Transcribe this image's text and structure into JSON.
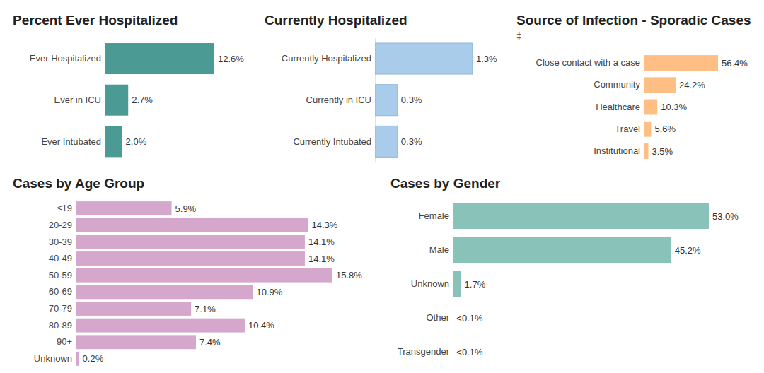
{
  "chart_data": [
    {
      "type": "bar",
      "orientation": "horizontal",
      "title": "Percent Ever Hospitalized",
      "categories": [
        "Ever Hospitalized",
        "Ever in ICU",
        "Ever Intubated"
      ],
      "values": [
        12.6,
        2.7,
        2.0
      ],
      "value_labels": [
        "12.6%",
        "2.7%",
        "2.0%"
      ],
      "color": "#4b9a93",
      "data_labels": true,
      "tick_labels": "y"
    },
    {
      "type": "bar",
      "orientation": "horizontal",
      "title": "Currently Hospitalized",
      "categories": [
        "Currently Hospitalized",
        "Currently in ICU",
        "Currently Intubated"
      ],
      "values": [
        1.3,
        0.3,
        0.3
      ],
      "value_labels": [
        "1.3%",
        "0.3%",
        "0.3%"
      ],
      "color": "#a8cce9",
      "data_labels": true,
      "tick_labels": "y"
    },
    {
      "type": "bar",
      "orientation": "horizontal",
      "title": "Source of Infection - Sporadic Cases",
      "subtitle": "‡",
      "categories": [
        "Close contact with a case",
        "Community",
        "Healthcare",
        "Travel",
        "Institutional"
      ],
      "values": [
        56.4,
        24.2,
        10.3,
        5.6,
        3.5
      ],
      "value_labels": [
        "56.4%",
        "24.2%",
        "10.3%",
        "5.6%",
        "3.5%"
      ],
      "color": "#ffbe84",
      "data_labels": true,
      "tick_labels": "y"
    },
    {
      "type": "bar",
      "orientation": "horizontal",
      "title": "Cases by Age Group",
      "categories": [
        "≤19",
        "20-29",
        "30-39",
        "40-49",
        "50-59",
        "60-69",
        "70-79",
        "80-89",
        "90+",
        "Unknown"
      ],
      "values": [
        5.9,
        14.3,
        14.1,
        14.1,
        15.8,
        10.9,
        7.1,
        10.4,
        7.4,
        0.2
      ],
      "value_labels": [
        "5.9%",
        "14.3%",
        "14.1%",
        "14.1%",
        "15.8%",
        "10.9%",
        "7.1%",
        "10.4%",
        "7.4%",
        "0.2%"
      ],
      "color": "#d5a7cd",
      "data_labels": true,
      "tick_labels": "y"
    },
    {
      "type": "bar",
      "orientation": "horizontal",
      "title": "Cases by Gender",
      "categories": [
        "Female",
        "Male",
        "Unknown",
        "Other",
        "Transgender"
      ],
      "values": [
        53.0,
        45.2,
        1.7,
        0.05,
        0.05
      ],
      "value_labels": [
        "53.0%",
        "45.2%",
        "1.7%",
        "<0.1%",
        "<0.1%"
      ],
      "color": "#89c2b9",
      "data_labels": true,
      "tick_labels": "y"
    }
  ]
}
